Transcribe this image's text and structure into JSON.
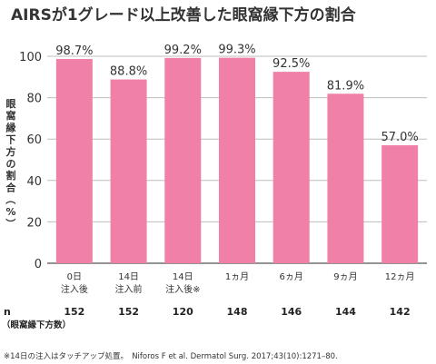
{
  "chart_data": {
    "type": "bar",
    "title": "AIRSが1グレード以上改善した眼窩縁下方の割合",
    "ylabel": "眼窩縁下方の割合（%）",
    "ylim": [
      0,
      100
    ],
    "yticks": [
      "0",
      "20",
      "40",
      "60",
      "80",
      "100"
    ],
    "categories": [
      [
        "0日",
        "注入後"
      ],
      [
        "14日",
        "注入前"
      ],
      [
        "14日",
        "注入後※"
      ],
      [
        "1ヵ月"
      ],
      [
        "6ヵ月"
      ],
      [
        "9ヵ月"
      ],
      [
        "12ヵ月"
      ]
    ],
    "values": [
      98.7,
      88.8,
      99.2,
      99.3,
      92.5,
      81.9,
      57.0
    ],
    "value_labels": [
      "98.7%",
      "88.8%",
      "99.2%",
      "99.3%",
      "92.5%",
      "81.9%",
      "57.0%"
    ],
    "bar_color": "#f080a8",
    "grid": true,
    "n_row": {
      "label": "n",
      "sublabel": "（眼窩縁下方数）",
      "values": [
        "152",
        "152",
        "120",
        "148",
        "146",
        "144",
        "142"
      ]
    }
  },
  "footnote": "※14日の注入はタッチアップ処置。　Niforos F et al. Dermatol Surg. 2017;43(10):1271–80."
}
